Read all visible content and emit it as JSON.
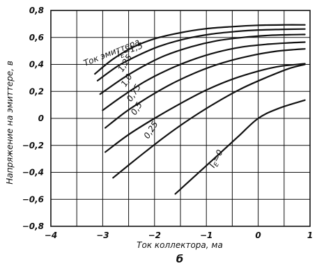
{
  "chart_data": {
    "type": "line",
    "title": "",
    "xlabel": "Ток коллектора, ма",
    "ylabel": "Напряжение на эмиттере, в",
    "figure_label": "б",
    "legend_title": "Ток эмиттера",
    "xlim": [
      -4,
      1
    ],
    "ylim": [
      -0.8,
      0.8
    ],
    "x_ticks": [
      -4,
      -3,
      -2,
      -1,
      0,
      1
    ],
    "x_tick_labels": [
      "−4",
      "−3",
      "−2",
      "−1",
      "0",
      "1"
    ],
    "y_ticks": [
      -0.8,
      -0.6,
      -0.4,
      -0.2,
      0,
      0.2,
      0.4,
      0.6,
      0.8
    ],
    "y_tick_labels": [
      "−0,8",
      "−0,6",
      "−0,4",
      "−0,2",
      "0",
      "0,2",
      "0,4",
      "0,6",
      "0,8"
    ],
    "x_grid": [
      -4,
      -3.5,
      -3,
      -2.5,
      -2,
      -1.5,
      -1,
      -0.5,
      0,
      0.5,
      1
    ],
    "y_grid": [
      -0.8,
      -0.6,
      -0.4,
      -0.2,
      0,
      0.2,
      0.4,
      0.6,
      0.8
    ],
    "grid": true,
    "legend": "none",
    "series": [
      {
        "name": "I_E=1,5",
        "label_text": "I",
        "label_sub": "E",
        "label_rest": "=1,5",
        "label_at": [
          -2.7,
          0.455
        ],
        "points": [
          [
            -3.15,
            0.33
          ],
          [
            -2.8,
            0.44
          ],
          [
            -2.4,
            0.53
          ],
          [
            -2.0,
            0.59
          ],
          [
            -1.5,
            0.635
          ],
          [
            -1.0,
            0.665
          ],
          [
            -0.5,
            0.68
          ],
          [
            0.0,
            0.69
          ],
          [
            0.5,
            0.693
          ],
          [
            0.9,
            0.693
          ]
        ]
      },
      {
        "name": "1,25",
        "label_text": "1,25",
        "label_at": [
          -2.62,
          0.34
        ],
        "points": [
          [
            -3.1,
            0.28
          ],
          [
            -2.7,
            0.39
          ],
          [
            -2.3,
            0.47
          ],
          [
            -1.9,
            0.535
          ],
          [
            -1.4,
            0.59
          ],
          [
            -0.9,
            0.625
          ],
          [
            -0.4,
            0.645
          ],
          [
            0.0,
            0.655
          ],
          [
            0.5,
            0.66
          ],
          [
            0.9,
            0.662
          ]
        ]
      },
      {
        "name": "1,0",
        "label_text": "1,0",
        "label_at": [
          -2.56,
          0.23
        ],
        "points": [
          [
            -3.05,
            0.18
          ],
          [
            -2.6,
            0.3
          ],
          [
            -2.2,
            0.39
          ],
          [
            -1.8,
            0.465
          ],
          [
            -1.3,
            0.53
          ],
          [
            -0.8,
            0.575
          ],
          [
            -0.3,
            0.6
          ],
          [
            0.2,
            0.615
          ],
          [
            0.6,
            0.62
          ],
          [
            0.9,
            0.622
          ]
        ]
      },
      {
        "name": "0,75",
        "label_text": "0,75",
        "label_at": [
          -2.45,
          0.12
        ],
        "points": [
          [
            -3.0,
            0.06
          ],
          [
            -2.6,
            0.17
          ],
          [
            -2.2,
            0.27
          ],
          [
            -1.8,
            0.35
          ],
          [
            -1.3,
            0.43
          ],
          [
            -0.8,
            0.49
          ],
          [
            -0.3,
            0.53
          ],
          [
            0.2,
            0.55
          ],
          [
            0.6,
            0.56
          ],
          [
            0.9,
            0.565
          ]
        ]
      },
      {
        "name": "0,5",
        "label_text": "0,5",
        "label_at": [
          -2.37,
          0.02
        ],
        "points": [
          [
            -2.95,
            -0.07
          ],
          [
            -2.55,
            0.05
          ],
          [
            -2.15,
            0.15
          ],
          [
            -1.7,
            0.25
          ],
          [
            -1.2,
            0.34
          ],
          [
            -0.7,
            0.41
          ],
          [
            -0.2,
            0.46
          ],
          [
            0.3,
            0.495
          ],
          [
            0.7,
            0.51
          ],
          [
            0.9,
            0.515
          ]
        ]
      },
      {
        "name": "0,25",
        "label_text": "0,25",
        "label_at": [
          -2.12,
          -0.155
        ],
        "points": [
          [
            -2.95,
            -0.25
          ],
          [
            -2.5,
            -0.12
          ],
          [
            -2.0,
            0.0
          ],
          [
            -1.5,
            0.11
          ],
          [
            -1.0,
            0.21
          ],
          [
            -0.5,
            0.29
          ],
          [
            0.0,
            0.35
          ],
          [
            0.4,
            0.385
          ],
          [
            0.9,
            0.405
          ]
        ]
      },
      {
        "name": "I_E=0",
        "label_text": "I",
        "label_sub": "E",
        "label_rest": "=0",
        "label_at": [
          -0.85,
          -0.37
        ],
        "points": [
          [
            -2.8,
            -0.44
          ],
          [
            -2.3,
            -0.285
          ],
          [
            -1.8,
            -0.135
          ],
          [
            -1.3,
            0.0
          ],
          [
            -0.8,
            0.12
          ],
          [
            -0.3,
            0.225
          ],
          [
            0.2,
            0.31
          ],
          [
            0.6,
            0.37
          ],
          [
            0.9,
            0.4
          ]
        ]
      },
      {
        "name": "I_E=0 (lower)",
        "label_text": "",
        "label_at": null,
        "points": [
          [
            -1.6,
            -0.56
          ],
          [
            -1.2,
            -0.42
          ],
          [
            -0.8,
            -0.28
          ],
          [
            -0.4,
            -0.14
          ],
          [
            0.0,
            0.0
          ],
          [
            0.4,
            0.075
          ],
          [
            0.9,
            0.135
          ]
        ]
      }
    ]
  }
}
